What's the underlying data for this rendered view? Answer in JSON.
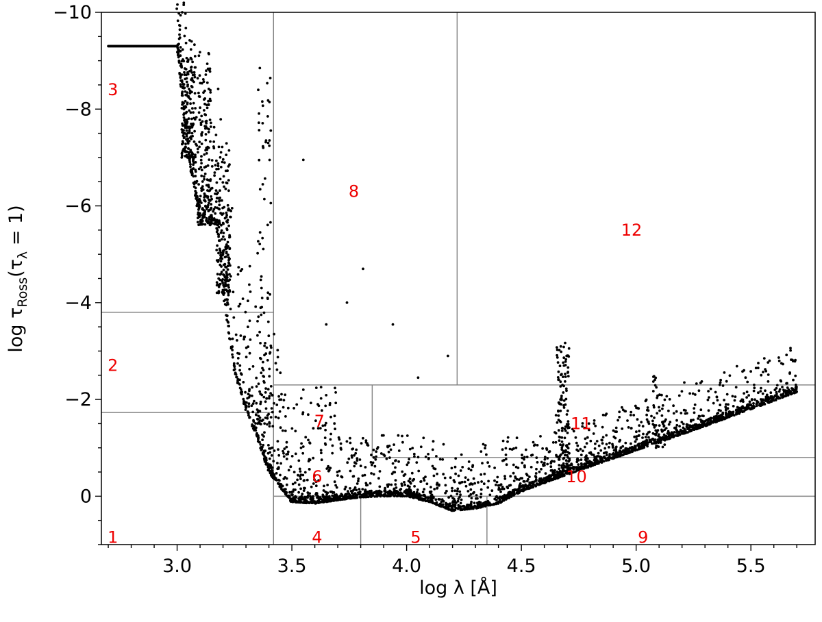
{
  "chart_data": {
    "type": "scatter",
    "xlabel": "log λ  [Å]",
    "ylabel": "log τRoss(τλ = 1)",
    "ylabel_parts": {
      "prefix": "log τ",
      "sub1": "Ross",
      "mid": "(τ",
      "sub2": "λ",
      "suffix": " = 1)"
    },
    "xlim": [
      2.67,
      5.78
    ],
    "ylim": [
      1.0,
      -10.0
    ],
    "y_inverted": true,
    "x_ticks": [
      3.0,
      3.5,
      4.0,
      4.5,
      5.0,
      5.5
    ],
    "x_tick_labels": [
      "3.0",
      "3.5",
      "4.0",
      "4.5",
      "5.0",
      "5.5"
    ],
    "x_minor_step": 0.1,
    "y_ticks": [
      -10,
      -8,
      -6,
      -4,
      -2,
      0
    ],
    "y_tick_labels": [
      "−10",
      "−8",
      "−6",
      "−4",
      "−2",
      "0"
    ],
    "y_minor_step": 0.5,
    "point_color": "#000000",
    "label_color": "#ee0000",
    "grid_color": "#808080",
    "envelope": [
      [
        2.7,
        -9.3
      ],
      [
        3.0,
        -9.3
      ],
      [
        3.05,
        -7.0
      ],
      [
        3.1,
        -5.7
      ],
      [
        3.18,
        -5.6
      ],
      [
        3.2,
        -4.2
      ],
      [
        3.25,
        -2.6
      ],
      [
        3.3,
        -1.8
      ],
      [
        3.35,
        -1.2
      ],
      [
        3.4,
        -0.5
      ],
      [
        3.5,
        0.12
      ],
      [
        3.6,
        0.15
      ],
      [
        3.7,
        0.08
      ],
      [
        3.8,
        0.02
      ],
      [
        3.9,
        0.0
      ],
      [
        4.0,
        0.0
      ],
      [
        4.1,
        0.12
      ],
      [
        4.2,
        0.3
      ],
      [
        4.3,
        0.25
      ],
      [
        4.4,
        0.15
      ],
      [
        4.5,
        -0.1
      ],
      [
        4.7,
        -0.45
      ],
      [
        5.0,
        -0.95
      ],
      [
        5.3,
        -1.45
      ],
      [
        5.7,
        -2.15
      ]
    ],
    "region_lines": [
      {
        "x1": 3.42,
        "y1": 1.0,
        "x2": 3.42,
        "y2": -10.0
      },
      {
        "x1": 4.22,
        "y1": -2.3,
        "x2": 4.22,
        "y2": -10.0
      },
      {
        "x1": 2.67,
        "y1": -3.8,
        "x2": 3.42,
        "y2": -3.8
      },
      {
        "x1": 2.67,
        "y1": -1.73,
        "x2": 3.42,
        "y2": -1.73
      },
      {
        "x1": 3.42,
        "y1": -2.3,
        "x2": 5.78,
        "y2": -2.3
      },
      {
        "x1": 3.85,
        "y1": -2.3,
        "x2": 3.85,
        "y2": -0.8
      },
      {
        "x1": 3.85,
        "y1": -0.8,
        "x2": 5.78,
        "y2": -0.8
      },
      {
        "x1": 3.8,
        "y1": 1.0,
        "x2": 3.8,
        "y2": 0.0
      },
      {
        "x1": 3.42,
        "y1": 0.0,
        "x2": 4.35,
        "y2": 0.0
      },
      {
        "x1": 4.35,
        "y1": 1.0,
        "x2": 4.35,
        "y2": -0.0
      },
      {
        "x1": 4.35,
        "y1": 0.0,
        "x2": 5.78,
        "y2": 0.0
      }
    ],
    "region_labels": [
      {
        "text": "1",
        "x": 2.72,
        "y": 0.85
      },
      {
        "text": "2",
        "x": 2.72,
        "y": -2.7
      },
      {
        "text": "3",
        "x": 2.72,
        "y": -8.4
      },
      {
        "text": "4",
        "x": 3.61,
        "y": 0.85
      },
      {
        "text": "5",
        "x": 4.04,
        "y": 0.85
      },
      {
        "text": "6",
        "x": 3.61,
        "y": -0.4
      },
      {
        "text": "7",
        "x": 3.62,
        "y": -1.55
      },
      {
        "text": "8",
        "x": 3.77,
        "y": -6.3
      },
      {
        "text": "9",
        "x": 5.03,
        "y": 0.85
      },
      {
        "text": "10",
        "x": 4.74,
        "y": -0.4
      },
      {
        "text": "11",
        "x": 4.76,
        "y": -1.5
      },
      {
        "text": "12",
        "x": 4.98,
        "y": -5.5
      }
    ]
  }
}
